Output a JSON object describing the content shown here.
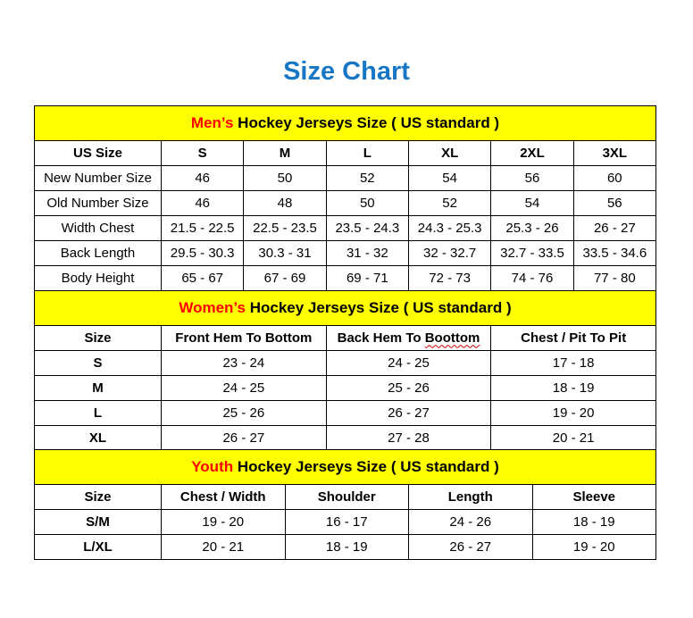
{
  "title": "Size Chart",
  "colors": {
    "title_blue": "#1777C4",
    "accent_red": "#FF0000",
    "banner_yellow": "#FFFF00",
    "border_black": "#000000"
  },
  "men": {
    "banner": {
      "highlight": "Men’s",
      "rest": " Hockey Jerseys Size ( US standard )"
    },
    "columns": [
      "US Size",
      "S",
      "M",
      "L",
      "XL",
      "2XL",
      "3XL"
    ],
    "rows": [
      {
        "label": "New Number Size",
        "values": [
          "46",
          "50",
          "52",
          "54",
          "56",
          "60"
        ]
      },
      {
        "label": "Old Number Size",
        "values": [
          "46",
          "48",
          "50",
          "52",
          "54",
          "56"
        ]
      },
      {
        "label": "Width Chest",
        "values": [
          "21.5 - 22.5",
          "22.5 - 23.5",
          "23.5 - 24.3",
          "24.3 - 25.3",
          "25.3 - 26",
          "26 - 27"
        ]
      },
      {
        "label": "Back Length",
        "values": [
          "29.5 - 30.3",
          "30.3 - 31",
          "31 - 32",
          "32 - 32.7",
          "32.7 - 33.5",
          "33.5 - 34.6"
        ]
      },
      {
        "label": "Body Height",
        "values": [
          "65 - 67",
          "67 - 69",
          "69 - 71",
          "72 - 73",
          "74 - 76",
          "77 - 80"
        ]
      }
    ]
  },
  "women": {
    "banner": {
      "highlight": "Women’s",
      "rest": " Hockey Jerseys Size ( US standard )"
    },
    "columns": {
      "size": "Size",
      "front_hem": "Front Hem To Bottom",
      "back_hem_prefix": "Back Hem To ",
      "back_hem_word": "Boottom",
      "chest": "Chest / Pit To Pit"
    },
    "rows": [
      {
        "label": "S",
        "values": [
          "23 - 24",
          "24 - 25",
          "17 - 18"
        ]
      },
      {
        "label": "M",
        "values": [
          "24 - 25",
          "25 - 26",
          "18 - 19"
        ]
      },
      {
        "label": "L",
        "values": [
          "25 - 26",
          "26 - 27",
          "19 - 20"
        ]
      },
      {
        "label": "XL",
        "values": [
          "26 - 27",
          "27 - 28",
          "20 - 21"
        ]
      }
    ]
  },
  "youth": {
    "banner": {
      "highlight": "Youth",
      "rest": " Hockey Jerseys Size ( US standard )"
    },
    "columns": [
      "Size",
      "Chest / Width",
      "Shoulder",
      "Length",
      "Sleeve"
    ],
    "rows": [
      {
        "label": "S/M",
        "values": [
          "19 - 20",
          "16 - 17",
          "24 - 26",
          "18 - 19"
        ]
      },
      {
        "label": "L/XL",
        "values": [
          "20 - 21",
          "18 - 19",
          "26 - 27",
          "19 - 20"
        ]
      }
    ]
  }
}
